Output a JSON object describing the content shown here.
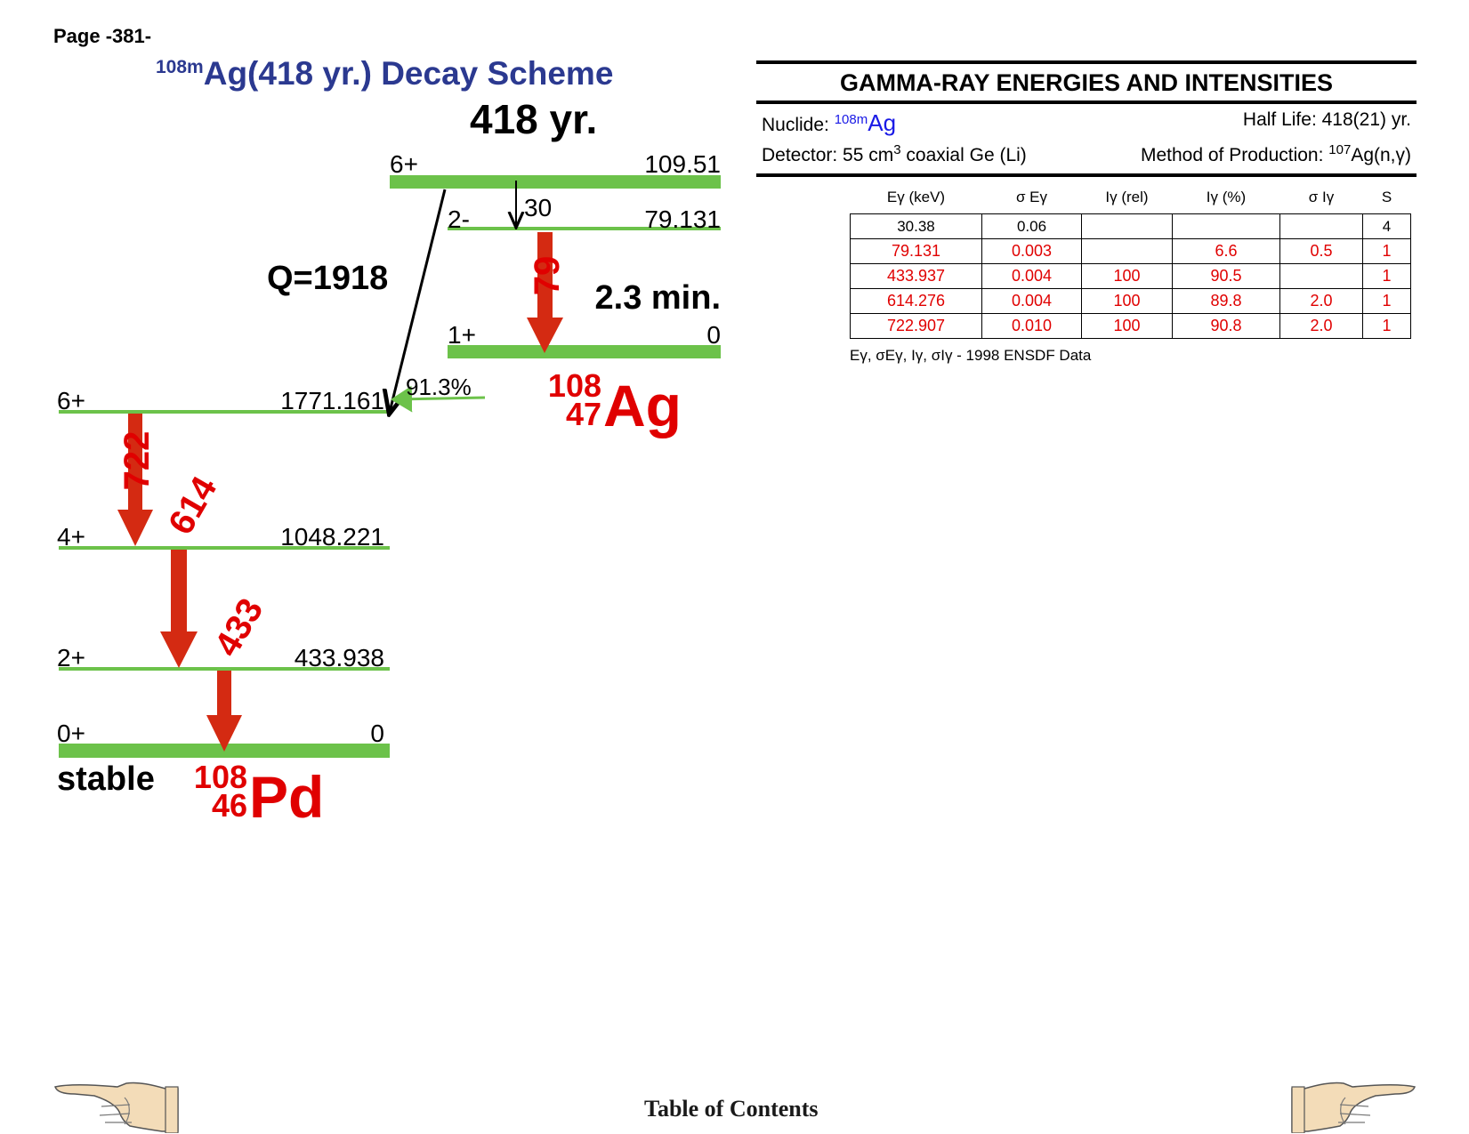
{
  "page": {
    "label": "Page -381-"
  },
  "scheme": {
    "title_sup": "108m",
    "title": "Ag(418 yr.) Decay Scheme",
    "parent_halflife": "418 yr.",
    "q_value": "Q=1918",
    "isomer_halflife": "2.3 min.",
    "stable_label": "stable",
    "ag_levels": [
      {
        "spin": "6+",
        "energy": "109.51"
      },
      {
        "spin": "2-",
        "energy": "79.131"
      },
      {
        "spin": "1+",
        "energy": "0"
      }
    ],
    "pd_levels": [
      {
        "spin": "6+",
        "energy": "1771.161"
      },
      {
        "spin": "4+",
        "energy": "1048.221"
      },
      {
        "spin": "2+",
        "energy": "433.938"
      },
      {
        "spin": "0+",
        "energy": "0"
      }
    ],
    "branch_percent": "91.3%",
    "transitions": {
      "t30": "30",
      "t79": "79",
      "t722": "722",
      "t614": "614",
      "t433": "433"
    },
    "ag_nuclide": {
      "mass": "108",
      "z": "47",
      "symbol": "Ag"
    },
    "pd_nuclide": {
      "mass": "108",
      "z": "46",
      "symbol": "Pd"
    },
    "colors": {
      "level": "#6cc24a",
      "gamma": "#d42a12",
      "title": "#2b3990",
      "red_text": "#e00000"
    }
  },
  "gamma_table": {
    "heading": "GAMMA-RAY ENERGIES AND INTENSITIES",
    "nuclide_label": "Nuclide:",
    "nuclide_sup": "108m",
    "nuclide": "Ag",
    "half_life": "Half Life: 418(21) yr.",
    "detector_a": "Detector: 55 cm",
    "detector_sup": "3",
    "detector_b": " coaxial Ge (Li)",
    "method_a": "Method of Production: ",
    "method_sup": "107",
    "method_b": "Ag(n,γ)",
    "columns": [
      "Eγ (keV)",
      "σ Eγ",
      "Iγ (rel)",
      "Iγ (%)",
      "σ Iγ",
      "S"
    ],
    "rows": [
      [
        "30.38",
        "0.06",
        "",
        "",
        "",
        "4"
      ],
      [
        "79.131",
        "0.003",
        "",
        "6.6",
        "0.5",
        "1"
      ],
      [
        "433.937",
        "0.004",
        "100",
        "90.5",
        "",
        "1"
      ],
      [
        "614.276",
        "0.004",
        "100",
        "89.8",
        "2.0",
        "1"
      ],
      [
        "722.907",
        "0.010",
        "100",
        "90.8",
        "2.0",
        "1"
      ]
    ],
    "footnote": "Eγ, σEγ, Iγ, σIγ - 1998 ENSDF Data"
  },
  "footer": {
    "toc": "Table of Contents",
    "left_icon": "pointing-hand-left-icon",
    "right_icon": "pointing-hand-right-icon"
  }
}
